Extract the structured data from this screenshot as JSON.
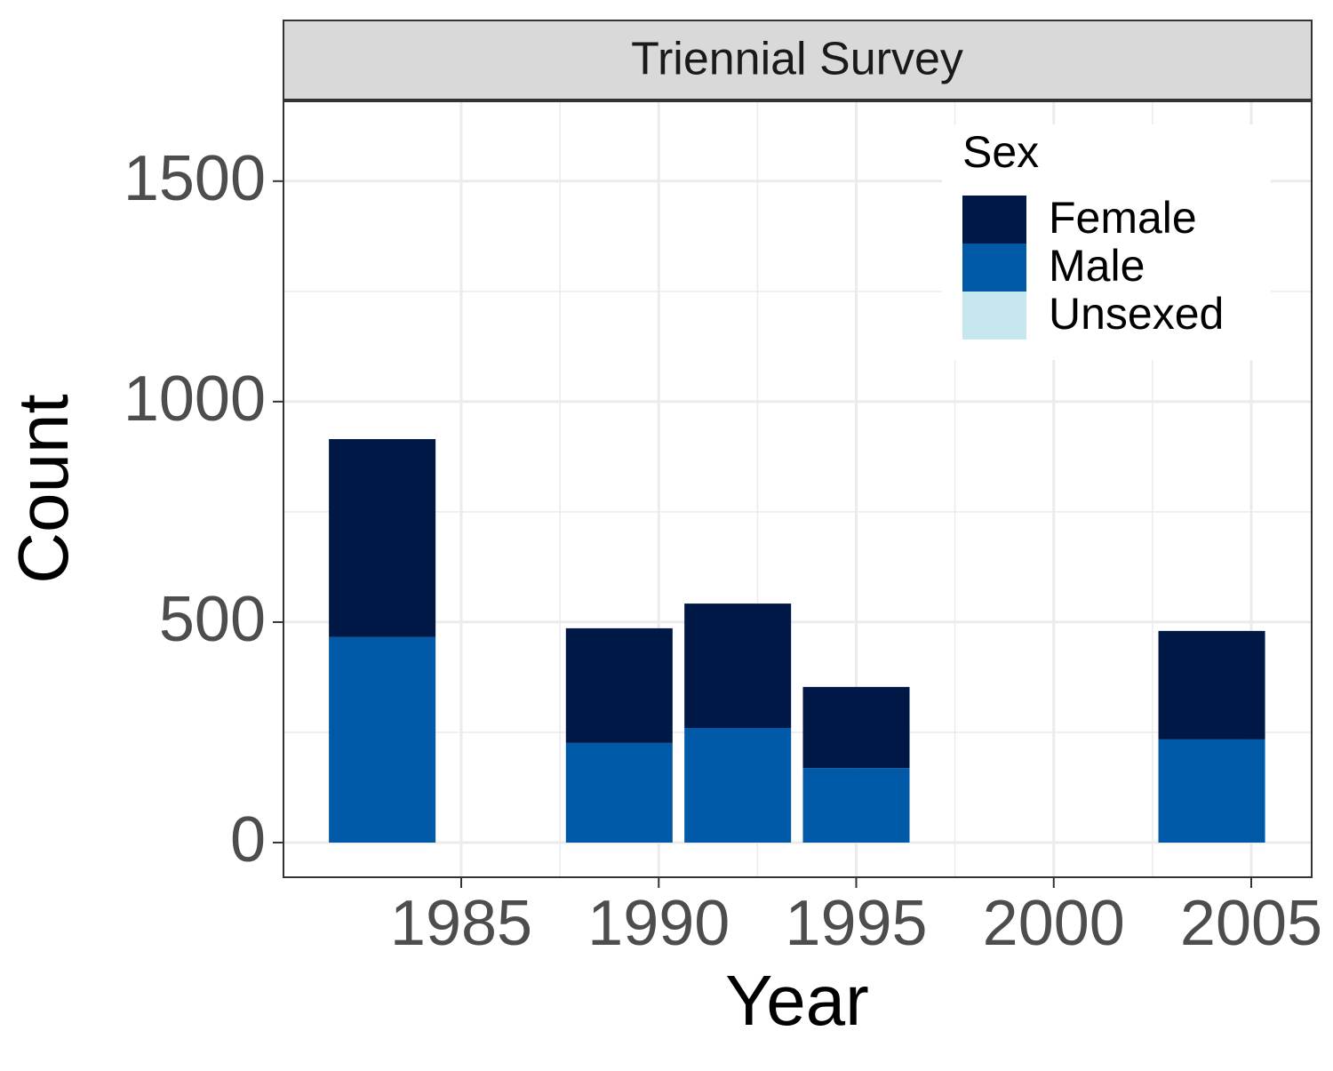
{
  "chart_data": {
    "type": "stacked-bar",
    "facet_title": "Triennial Survey",
    "x_label": "Year",
    "y_label": "Count",
    "x": [
      1983,
      1989,
      1992,
      1995,
      2004
    ],
    "bar_width": 2.7,
    "series": [
      {
        "name": "Female",
        "color": "#001845",
        "values": [
          449,
          260,
          282,
          184,
          246
        ]
      },
      {
        "name": "Male",
        "color": "#005aa8",
        "values": [
          466,
          226,
          260,
          169,
          234
        ]
      },
      {
        "name": "Unsexed",
        "color": "#c6e6f0",
        "values": [
          0,
          0,
          0,
          0,
          0
        ]
      }
    ],
    "legend_title": "Sex",
    "legend_position": "top-right",
    "xlim": [
      1980.5,
      2006.53
    ],
    "xticks": [
      1985,
      1990,
      1995,
      2000,
      2005
    ],
    "ylim": [
      -78.6,
      1681
    ],
    "yticks": [
      0,
      500,
      1000,
      1500
    ],
    "grid": true
  }
}
